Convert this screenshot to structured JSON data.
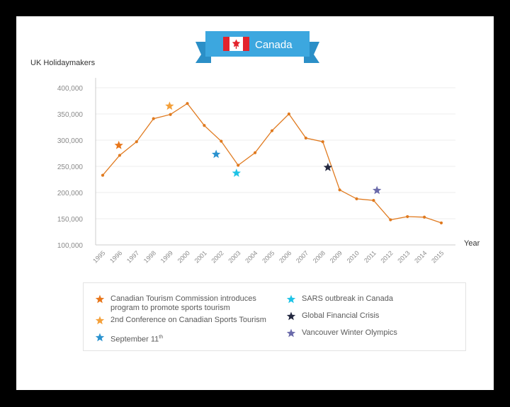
{
  "banner": {
    "title": "Canada",
    "flag": "canada-flag"
  },
  "chart_data": {
    "type": "line",
    "title": "Canada",
    "ylabel": "UK Holidaymakers",
    "xlabel": "Year",
    "ylim": [
      100000,
      400000
    ],
    "yticks": [
      100000,
      150000,
      200000,
      250000,
      300000,
      350000,
      400000
    ],
    "ytick_labels": [
      "100,000",
      "150,000",
      "200,000",
      "250,000",
      "300,000",
      "350,000",
      "400,000"
    ],
    "categories": [
      "1995",
      "1996",
      "1997",
      "1998",
      "1999",
      "2000",
      "2001",
      "2002",
      "2003",
      "2004",
      "2005",
      "2006",
      "2007",
      "2008",
      "2009",
      "2010",
      "2011",
      "2012",
      "2013",
      "2014",
      "2015"
    ],
    "series": [
      {
        "values": [
          233000,
          271000,
          297000,
          341000,
          349000,
          370000,
          328000,
          298000,
          252000,
          276000,
          318000,
          350000,
          304000,
          297000,
          205000,
          188000,
          185000,
          148000,
          154000,
          153000,
          142000
        ],
        "color": "#e07a1f"
      }
    ],
    "grid": true,
    "events": [
      {
        "x": 1995.95,
        "y": 290000,
        "color": "#e8761a",
        "label": "Canadian Tourism Commission introduces\nprogram to promote sports tourism"
      },
      {
        "x": 1998.95,
        "y": 365000,
        "color": "#f4a03a",
        "label": "2nd Conference on Canadian Sports Tourism"
      },
      {
        "x": 2001.7,
        "y": 273000,
        "color": "#2a92cf",
        "label": "September 11",
        "label_sup": "th"
      },
      {
        "x": 2002.9,
        "y": 237000,
        "color": "#1ec3e6",
        "label": "SARS outbreak in Canada"
      },
      {
        "x": 2008.3,
        "y": 248000,
        "color": "#232840",
        "label": "Global Financial Crisis"
      },
      {
        "x": 2011.2,
        "y": 204000,
        "color": "#6a6aaa",
        "label": "Vancouver Winter Olympics"
      }
    ]
  }
}
